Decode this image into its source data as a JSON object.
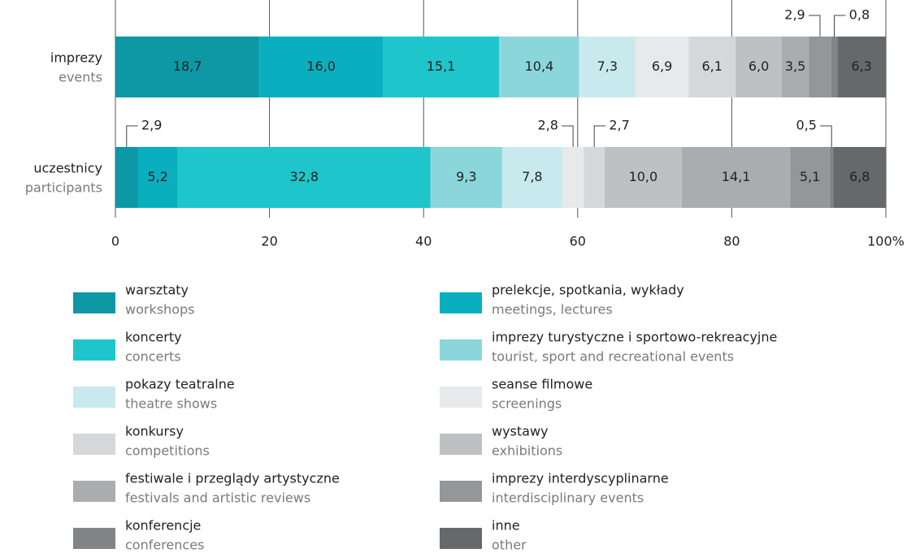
{
  "chart_data": {
    "type": "stacked_bar_horizontal",
    "categories": [
      "imprezy",
      "uczestnicy"
    ],
    "categories_en": [
      "events",
      "participants"
    ],
    "xlim": [
      0,
      100
    ],
    "xticks": [
      0,
      20,
      40,
      60,
      80,
      {
        "value": 100,
        "label": "100%"
      }
    ],
    "grid": true,
    "series": [
      {
        "name": "warsztaty",
        "name_en": "workshops",
        "color": "#0e97a5",
        "values": [
          18.7,
          2.9
        ],
        "value_labels": [
          "18,7",
          "2,9"
        ]
      },
      {
        "name": "prelekcje, spotkania, wykłady",
        "name_en": "meetings, lectures",
        "color": "#0aafbf",
        "values": [
          16.0,
          5.2
        ],
        "value_labels": [
          "16,0",
          "5,2"
        ]
      },
      {
        "name": "koncerty",
        "name_en": "concerts",
        "color": "#1ec5cb",
        "values": [
          15.1,
          32.8
        ],
        "value_labels": [
          "15,1",
          "32,8"
        ]
      },
      {
        "name": "imprezy turystyczne i sportowo-rekreacyjne",
        "name_en": "tourist, sport and recreational events",
        "color": "#8bd6db",
        "values": [
          10.4,
          9.3
        ],
        "value_labels": [
          "10,4",
          "9,3"
        ]
      },
      {
        "name": "pokazy teatralne",
        "name_en": "theatre shows",
        "color": "#c8eaee",
        "values": [
          7.3,
          7.8
        ],
        "value_labels": [
          "7,3",
          "7,8"
        ]
      },
      {
        "name": "seanse filmowe",
        "name_en": "screenings",
        "color": "#e8e9ea",
        "values": [
          6.9,
          2.8
        ],
        "value_labels": [
          "6,9",
          "2,8"
        ]
      },
      {
        "name": "konkursy",
        "name_en": "competitions",
        "color": "#d6d7d9",
        "values": [
          6.1,
          2.7
        ],
        "value_labels": [
          "6,1",
          "2,7"
        ]
      },
      {
        "name": "wystawy",
        "name_en": "exhibitions",
        "color": "#bfc0c3",
        "values": [
          6.0,
          10.0
        ],
        "value_labels": [
          "6,0",
          "10,0"
        ]
      },
      {
        "name": "festiwale i przeglądy artystyczne",
        "name_en": "festivals and artistic reviews",
        "color": "#abacb0",
        "values": [
          3.5,
          14.1
        ],
        "value_labels": [
          "3,5",
          "14,1"
        ]
      },
      {
        "name": "imprezy interdyscyplinarne",
        "name_en": "interdisciplinary events",
        "color": "#95969a",
        "values": [
          2.9,
          5.1
        ],
        "value_labels": [
          "2,9",
          "5,1"
        ]
      },
      {
        "name": "konferencje",
        "name_en": "conferences",
        "color": "#838488",
        "values": [
          0.8,
          0.5
        ],
        "value_labels": [
          "0,8",
          "0,5"
        ]
      },
      {
        "name": "inne",
        "name_en": "other",
        "color": "#67686c",
        "values": [
          6.3,
          6.8
        ],
        "value_labels": [
          "6,3",
          "6,8"
        ]
      }
    ]
  }
}
